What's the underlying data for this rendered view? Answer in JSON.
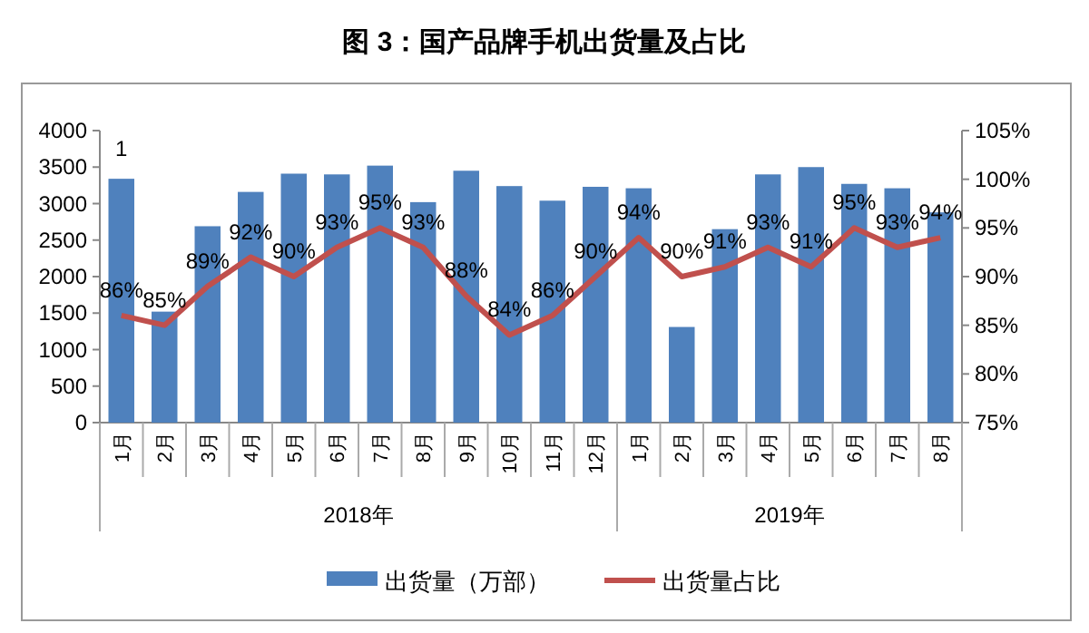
{
  "chart_data": {
    "type": "bar",
    "title": "图 3：国产品牌手机出货量及占比",
    "categories": [
      "1月",
      "2月",
      "3月",
      "4月",
      "5月",
      "6月",
      "7月",
      "8月",
      "9月",
      "10月",
      "11月",
      "12月",
      "1月",
      "2月",
      "3月",
      "4月",
      "5月",
      "6月",
      "7月",
      "8月"
    ],
    "series": [
      {
        "name": "出货量（万部）",
        "color": "#4f81bd",
        "values": [
          3340,
          1520,
          2690,
          3160,
          3410,
          3400,
          3520,
          3020,
          3450,
          3240,
          3040,
          3230,
          3210,
          1310,
          2650,
          3400,
          3500,
          3270,
          3210,
          2880
        ]
      },
      {
        "name": "出货量占比",
        "type": "line",
        "axis": "y2",
        "color": "#c0504d",
        "values": [
          86,
          85,
          89,
          92,
          90,
          93,
          95,
          93,
          88,
          84,
          86,
          90,
          94,
          90,
          91,
          93,
          91,
          95,
          93,
          94
        ],
        "value_labels": [
          "86%",
          "85%",
          "89%",
          "92%",
          "90%",
          "93%",
          "95%",
          "93%",
          "88%",
          "84%",
          "86%",
          "90%",
          "94%",
          "90%",
          "91%",
          "93%",
          "91%",
          "95%",
          "93%",
          "94%"
        ]
      }
    ],
    "ylim": [
      0,
      4000
    ],
    "yticks": [
      0,
      500,
      1000,
      1500,
      2000,
      2500,
      3000,
      3500,
      4000
    ],
    "y2lim": [
      75,
      105
    ],
    "y2ticks": [
      {
        "value": 75,
        "label": "75%"
      },
      {
        "value": 80,
        "label": "80%"
      },
      {
        "value": 85,
        "label": "85%"
      },
      {
        "value": 90,
        "label": "90%"
      },
      {
        "value": 95,
        "label": "95%"
      },
      {
        "value": 100,
        "label": "100%"
      },
      {
        "value": 105,
        "label": "105%"
      }
    ],
    "annotations": [
      "1",
      "2018年",
      "2019年"
    ],
    "grid": false,
    "legend": "bottom",
    "marker": "none",
    "line_style": "solid"
  }
}
